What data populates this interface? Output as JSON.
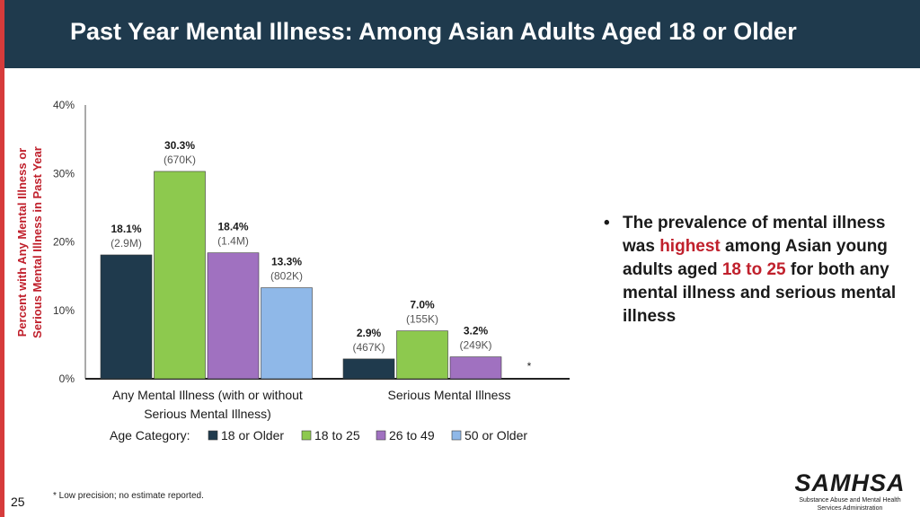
{
  "header": {
    "title": "Past Year Mental Illness: Among Asian Adults Aged 18 or Older"
  },
  "slide": {
    "page_number": "25"
  },
  "footnote": "* Low precision; no estimate reported.",
  "bullet": {
    "parts": [
      "The prevalence of mental illness was ",
      "highest",
      " among Asian young adults aged ",
      "18 to 25",
      " for both any mental illness and serious mental illness"
    ]
  },
  "logo": {
    "name": "SAMHSA",
    "tagline_line1": "Substance Abuse and Mental Health",
    "tagline_line2": "Services Administration"
  },
  "colors": {
    "header_bg": "#1f3a4d",
    "accent": "#c0202c",
    "left_bar": "#d63b3b"
  },
  "chart_data": {
    "type": "bar",
    "ylabel_line1": "Percent with Any Mental Illness or",
    "ylabel_line2": "Serious Mental Illness in Past Year",
    "ylim": [
      0,
      40
    ],
    "yticks": [
      "0%",
      "10%",
      "20%",
      "30%",
      "40%"
    ],
    "ytick_values": [
      0,
      10,
      20,
      30,
      40
    ],
    "groups": [
      {
        "label_line1": "Any Mental Illness (with or without",
        "label_line2": "Serious Mental Illness)"
      },
      {
        "label_line1": "Serious Mental Illness",
        "label_line2": ""
      }
    ],
    "legend_title": "Age Category:",
    "series": [
      {
        "name": "18 or Older",
        "color": "#1f3a4d",
        "values": [
          18.1,
          2.9
        ],
        "pct_labels": [
          "18.1%",
          "2.9%"
        ],
        "count_labels": [
          "(2.9M)",
          "(467K)"
        ]
      },
      {
        "name": "18 to 25",
        "color": "#8dc94e",
        "values": [
          30.3,
          7.0
        ],
        "pct_labels": [
          "30.3%",
          "7.0%"
        ],
        "count_labels": [
          "(670K)",
          "(155K)"
        ]
      },
      {
        "name": "26 to 49",
        "color": "#a071c0",
        "values": [
          18.4,
          3.2
        ],
        "pct_labels": [
          "18.4%",
          "3.2%"
        ],
        "count_labels": [
          "(1.4M)",
          "(249K)"
        ]
      },
      {
        "name": "50 or Older",
        "color": "#8fb8e8",
        "values": [
          13.3,
          null
        ],
        "pct_labels": [
          "13.3%",
          ""
        ],
        "count_labels": [
          "(802K)",
          ""
        ],
        "missing_marker": "*"
      }
    ]
  }
}
